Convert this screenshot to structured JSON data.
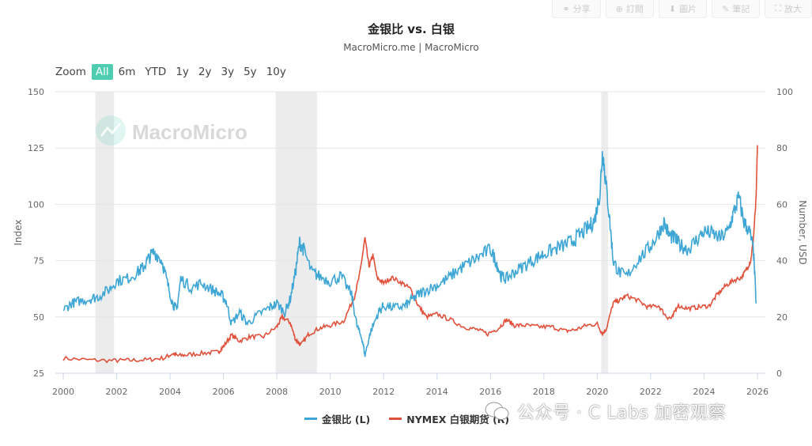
{
  "toolbar": {
    "items": [
      {
        "label": "分享",
        "icon": "share-icon"
      },
      {
        "label": "訂閱",
        "icon": "plus-circle-icon"
      },
      {
        "label": "圖片",
        "icon": "download-icon"
      },
      {
        "label": "筆記",
        "icon": "pencil-icon"
      },
      {
        "label": "放大",
        "icon": "expand-icon"
      }
    ]
  },
  "zoom": {
    "label": "Zoom",
    "options": [
      "All",
      "6m",
      "YTD",
      "1y",
      "2y",
      "3y",
      "5y",
      "10y"
    ],
    "active": "All"
  },
  "watermark": {
    "text": "MacroMicro"
  },
  "wechat_watermark": {
    "text": "公众号 · C Labs 加密观察"
  },
  "colors": {
    "gold_silver_ratio": "#3ea6d4",
    "silver": "#e0513b",
    "recession": "#ececec",
    "accent": "#4ecdb1"
  },
  "chart_data": {
    "type": "line",
    "title": "金银比 vs. 白银",
    "subtitle": "MacroMicro.me | MacroMicro",
    "left_axis": {
      "label": "Index",
      "ticks": [
        25,
        50,
        75,
        100,
        125,
        150
      ],
      "range": [
        25,
        150
      ]
    },
    "right_axis": {
      "label": "Number, USD",
      "ticks": [
        0,
        20,
        40,
        60,
        80,
        100
      ],
      "range": [
        0,
        100
      ]
    },
    "x_axis": {
      "ticks": [
        "2000",
        "2002",
        "2004",
        "2006",
        "2008",
        "2010",
        "2012",
        "2014",
        "2016",
        "2018",
        "2020",
        "2022",
        "2024",
        "2026"
      ],
      "range": [
        2000,
        2026
      ]
    },
    "recession_bands": [
      [
        2001.2,
        2001.9
      ],
      [
        2007.95,
        2009.5
      ],
      [
        2020.15,
        2020.4
      ]
    ],
    "legend": [
      {
        "name": "金银比 (L)",
        "color": "#3ea6d4"
      },
      {
        "name": "NYMEX 白银期货 (R)",
        "color": "#e0513b"
      }
    ],
    "series": [
      {
        "name": "金银比 (L)",
        "axis": "left",
        "x": [
          2000.0,
          2000.3,
          2000.6,
          2001.0,
          2001.3,
          2001.7,
          2002.0,
          2002.4,
          2002.8,
          2003.0,
          2003.2,
          2003.4,
          2003.7,
          2003.9,
          2004.1,
          2004.25,
          2004.4,
          2004.8,
          2005.2,
          2005.6,
          2005.9,
          2006.1,
          2006.3,
          2006.6,
          2006.9,
          2007.3,
          2007.7,
          2008.0,
          2008.3,
          2008.5,
          2008.7,
          2008.85,
          2009.0,
          2009.3,
          2009.6,
          2010.0,
          2010.4,
          2010.8,
          2011.0,
          2011.2,
          2011.3,
          2011.5,
          2011.8,
          2012.0,
          2012.4,
          2012.8,
          2013.0,
          2013.3,
          2013.6,
          2014.0,
          2014.4,
          2014.8,
          2015.2,
          2015.6,
          2016.0,
          2016.2,
          2016.4,
          2016.6,
          2016.9,
          2017.3,
          2017.7,
          2018.0,
          2018.4,
          2018.8,
          2019.1,
          2019.4,
          2019.7,
          2019.9,
          2020.1,
          2020.2,
          2020.3,
          2020.45,
          2020.6,
          2020.8,
          2021.1,
          2021.5,
          2021.9,
          2022.2,
          2022.5,
          2022.7,
          2022.9,
          2023.1,
          2023.4,
          2023.7,
          2024.0,
          2024.3,
          2024.6,
          2024.9,
          2025.1,
          2025.3,
          2025.5,
          2025.7,
          2025.85,
          2025.95
        ],
        "values": [
          53,
          56,
          57,
          58,
          59,
          62,
          66,
          67,
          70,
          72,
          76,
          79,
          75,
          65,
          56,
          53,
          67,
          63,
          65,
          62,
          60,
          57,
          47,
          52,
          47,
          51,
          54,
          56,
          52,
          58,
          70,
          83,
          80,
          70,
          68,
          66,
          68,
          60,
          46,
          40,
          33,
          43,
          52,
          55,
          54,
          55,
          57,
          60,
          62,
          64,
          67,
          71,
          74,
          77,
          80,
          75,
          68,
          67,
          70,
          73,
          76,
          78,
          80,
          82,
          84,
          87,
          90,
          93,
          105,
          124,
          112,
          95,
          75,
          70,
          68,
          75,
          80,
          85,
          92,
          86,
          85,
          82,
          80,
          84,
          88,
          87,
          85,
          88,
          96,
          103,
          92,
          88,
          80,
          56
        ]
      },
      {
        "name": "NYMEX 白银期货 (R)",
        "axis": "right",
        "x": [
          2000.0,
          2001.0,
          2001.9,
          2002.5,
          2003.2,
          2003.8,
          2004.1,
          2004.3,
          2004.7,
          2005.3,
          2005.8,
          2006.0,
          2006.3,
          2006.6,
          2007.0,
          2007.5,
          2008.0,
          2008.2,
          2008.5,
          2008.7,
          2008.9,
          2009.2,
          2009.6,
          2010.0,
          2010.5,
          2010.9,
          2011.1,
          2011.3,
          2011.45,
          2011.6,
          2011.75,
          2012.0,
          2012.3,
          2012.7,
          2013.0,
          2013.3,
          2013.6,
          2014.0,
          2014.5,
          2015.0,
          2015.5,
          2015.9,
          2016.3,
          2016.6,
          2016.9,
          2017.3,
          2017.8,
          2018.3,
          2018.8,
          2019.2,
          2019.6,
          2020.0,
          2020.2,
          2020.35,
          2020.6,
          2020.85,
          2021.1,
          2021.5,
          2021.9,
          2022.3,
          2022.6,
          2022.8,
          2023.0,
          2023.4,
          2023.8,
          2024.2,
          2024.5,
          2024.8,
          2025.1,
          2025.4,
          2025.6,
          2025.75,
          2025.85,
          2025.95,
          2026.0
        ],
        "values": [
          5.3,
          4.7,
          4.5,
          4.6,
          4.8,
          5.5,
          7.0,
          6.2,
          6.6,
          7.2,
          7.5,
          9.5,
          13.5,
          11.5,
          13.0,
          13.0,
          16.5,
          20.0,
          18.0,
          12.0,
          10.0,
          14.0,
          16.0,
          17.0,
          18.5,
          27.0,
          35.0,
          48.0,
          38.0,
          42.0,
          34.0,
          32.0,
          34.0,
          32.0,
          30.0,
          24.0,
          20.0,
          21.0,
          19.0,
          16.5,
          15.5,
          14.0,
          16.0,
          19.0,
          17.0,
          17.0,
          16.5,
          16.5,
          15.0,
          15.5,
          17.0,
          17.5,
          14.0,
          16.0,
          25.0,
          26.0,
          27.5,
          26.0,
          23.5,
          24.0,
          20.0,
          19.5,
          24.0,
          23.0,
          23.5,
          24.0,
          28.0,
          31.0,
          33.0,
          34.0,
          37.0,
          40.0,
          48.0,
          62.0,
          81.0
        ]
      }
    ]
  }
}
